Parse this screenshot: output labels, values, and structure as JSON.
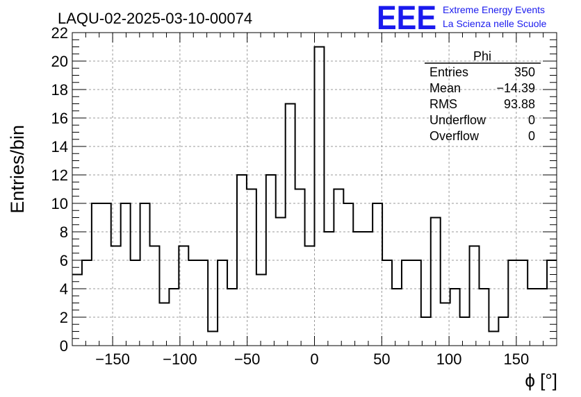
{
  "header": {
    "title": "LAQU-02-2025-03-10-00074",
    "logo_text": "EEE",
    "logo_line1": "Extreme Energy Events",
    "logo_line2": "La Scienza nelle Scuole",
    "logo_color": "#1a1aee"
  },
  "stats_box": {
    "name": "Phi",
    "rows": [
      {
        "label": "Entries",
        "value": "350"
      },
      {
        "label": "Mean",
        "value": "−14.39"
      },
      {
        "label": "RMS",
        "value": "93.88"
      },
      {
        "label": "Underflow",
        "value": "0"
      },
      {
        "label": "Overflow",
        "value": "0"
      }
    ]
  },
  "chart_data": {
    "type": "histogram",
    "title": "LAQU-02-2025-03-10-00074",
    "xlabel": "ϕ [°]",
    "ylabel": "Entries/bin",
    "xlim": [
      -180,
      180
    ],
    "ylim": [
      0,
      22
    ],
    "bin_width": 7.2,
    "grid": true,
    "x_ticks": [
      -150,
      -100,
      -50,
      0,
      50,
      100,
      150
    ],
    "x_tick_labels": [
      "−150",
      "−100",
      "−50",
      "0",
      "50",
      "100",
      "150"
    ],
    "y_ticks": [
      0,
      2,
      4,
      6,
      8,
      10,
      12,
      14,
      16,
      18,
      20,
      22
    ],
    "y_tick_labels": [
      "0",
      "2",
      "4",
      "6",
      "8",
      "10",
      "12",
      "14",
      "16",
      "18",
      "20",
      "22"
    ],
    "values": [
      5,
      6,
      10,
      10,
      7,
      10,
      6,
      10,
      7,
      3,
      4,
      7,
      6,
      6,
      1,
      6,
      4,
      12,
      11,
      5,
      12,
      9,
      17,
      11,
      7,
      21,
      8,
      11,
      10,
      8,
      8,
      10,
      6,
      4,
      6,
      6,
      2,
      9,
      3,
      4,
      2,
      7,
      4,
      1,
      2,
      6,
      6,
      4,
      4,
      6
    ]
  }
}
